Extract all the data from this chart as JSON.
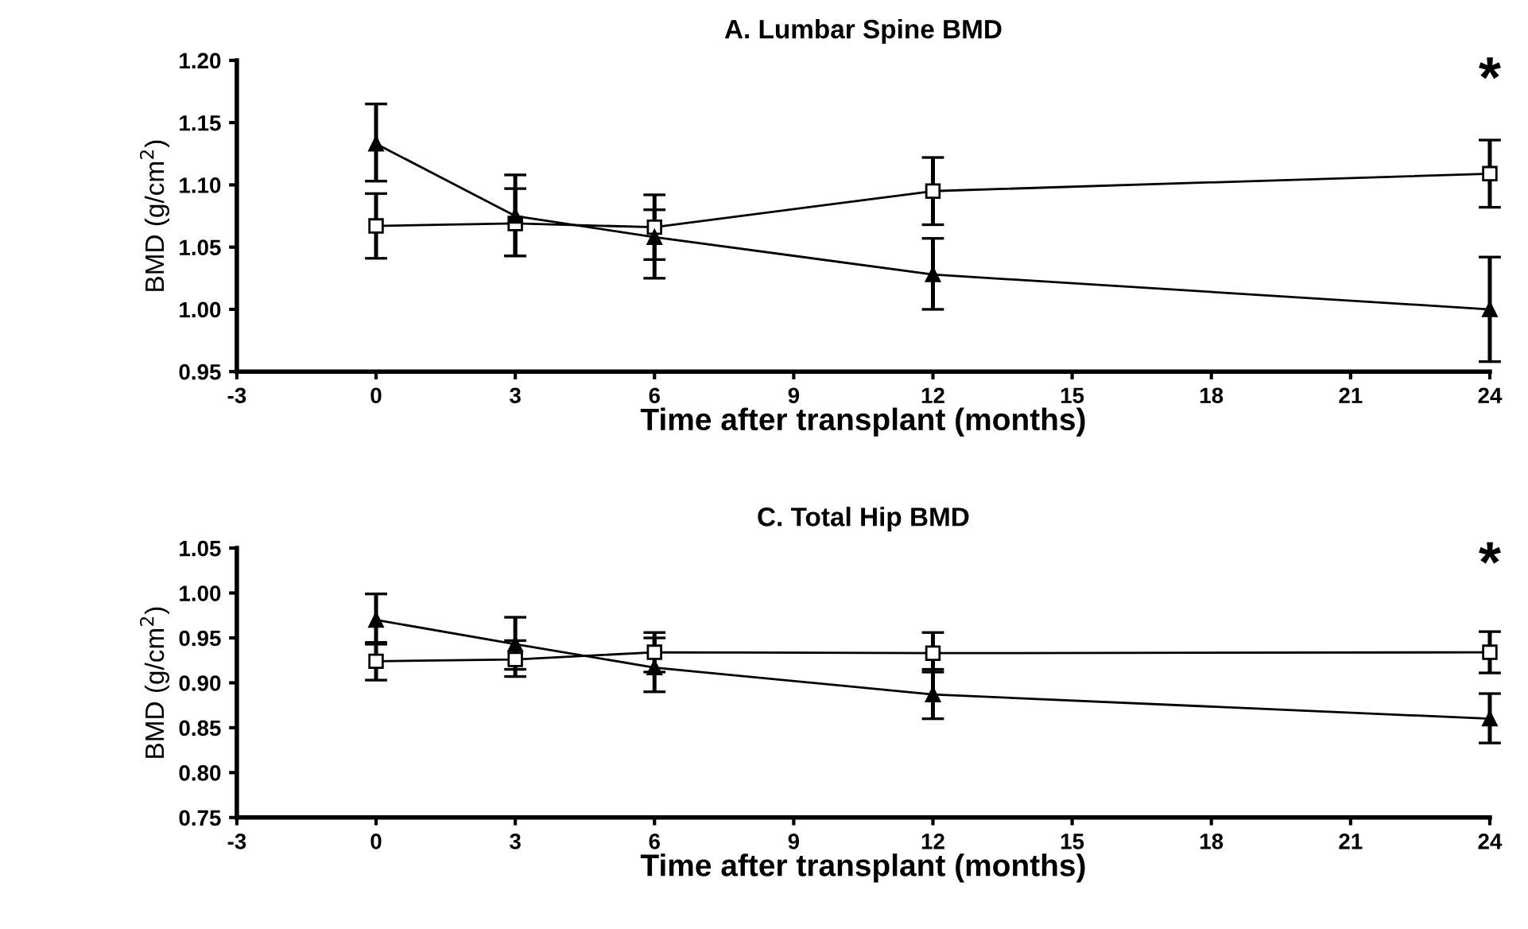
{
  "chart_data": [
    {
      "type": "line",
      "title": "A. Lumbar Spine BMD",
      "xlabel": "Time after transplant (months)",
      "ylabel": "BMD (g/cm$^{2}$)",
      "x": [
        0,
        3,
        6,
        12,
        24
      ],
      "xlim": [
        -3,
        24
      ],
      "xticks": [
        -3,
        0,
        3,
        6,
        9,
        12,
        15,
        18,
        21,
        24
      ],
      "ylim": [
        0.95,
        1.2
      ],
      "yticks": [
        {
          "value": 0.95,
          "label": "0.95"
        },
        {
          "value": 1.0,
          "label": "1.00"
        },
        {
          "value": 1.05,
          "label": "1.05"
        },
        {
          "value": 1.1,
          "label": "1.10"
        },
        {
          "value": 1.15,
          "label": "1.15"
        },
        {
          "value": 1.2,
          "label": "1.20"
        }
      ],
      "grid": false,
      "legend": false,
      "series": [
        {
          "color": "#000000",
          "marker": "square",
          "values": [
            1.067,
            1.069,
            1.066,
            1.095,
            1.109
          ],
          "errors": [
            [
              1.041,
              1.093
            ],
            [
              1.043,
              1.097
            ],
            [
              1.04,
              1.092
            ],
            [
              1.068,
              1.122
            ],
            [
              1.082,
              1.136
            ]
          ]
        },
        {
          "color": "#000000",
          "marker": "triangle",
          "values": [
            1.133,
            1.075,
            1.058,
            1.028,
            1.0
          ],
          "errors": [
            [
              1.103,
              1.165
            ],
            [
              1.043,
              1.108
            ],
            [
              1.025,
              1.08
            ],
            [
              1.0,
              1.057
            ],
            [
              0.958,
              1.042
            ]
          ]
        }
      ],
      "annotations": [
        "*"
      ]
    },
    {
      "type": "line",
      "title": "C. Total Hip BMD",
      "xlabel": "Time after transplant (months)",
      "ylabel": "BMD (g/cm$^{2}$)",
      "x": [
        0,
        3,
        6,
        12,
        24
      ],
      "xlim": [
        -3,
        24
      ],
      "xticks": [
        -3,
        0,
        3,
        6,
        9,
        12,
        15,
        18,
        21,
        24
      ],
      "ylim": [
        0.75,
        1.05
      ],
      "yticks": [
        {
          "value": 0.75,
          "label": "0.75"
        },
        {
          "value": 0.8,
          "label": "0.80"
        },
        {
          "value": 0.85,
          "label": "0.85"
        },
        {
          "value": 0.9,
          "label": "0.90"
        },
        {
          "value": 0.95,
          "label": "0.95"
        },
        {
          "value": 1.0,
          "label": "1.00"
        },
        {
          "value": 1.05,
          "label": "1.05"
        }
      ],
      "grid": false,
      "legend": false,
      "series": [
        {
          "color": "#000000",
          "marker": "square",
          "values": [
            0.924,
            0.926,
            0.934,
            0.933,
            0.934
          ],
          "errors": [
            [
              0.903,
              0.945
            ],
            [
              0.907,
              0.947
            ],
            [
              0.912,
              0.956
            ],
            [
              0.912,
              0.956
            ],
            [
              0.911,
              0.957
            ]
          ]
        },
        {
          "color": "#000000",
          "marker": "triangle",
          "values": [
            0.97,
            0.943,
            0.917,
            0.887,
            0.86
          ],
          "errors": [
            [
              0.943,
              0.999
            ],
            [
              0.915,
              0.973
            ],
            [
              0.89,
              0.95
            ],
            [
              0.86,
              0.915
            ],
            [
              0.833,
              0.888
            ]
          ]
        }
      ],
      "annotations": [
        "*"
      ]
    }
  ]
}
